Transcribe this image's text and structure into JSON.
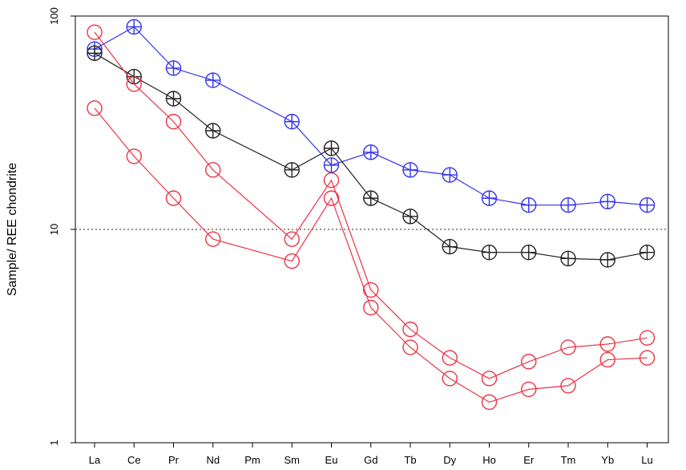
{
  "chart_data": {
    "type": "line",
    "xlabel": "",
    "ylabel": "Sample/ REE chondrite",
    "yscale": "log",
    "ylim": [
      1,
      100
    ],
    "yticks": [
      1,
      10,
      100
    ],
    "ytick_labels": [
      "1",
      "10",
      "100"
    ],
    "reference_line": {
      "y": 10,
      "style": "dotted",
      "color": "#555555"
    },
    "grid": false,
    "legend": "none",
    "categories": [
      "La",
      "Ce",
      "Pr",
      "Nd",
      "Pm",
      "Sm",
      "Eu",
      "Gd",
      "Tb",
      "Dy",
      "Ho",
      "Er",
      "Tm",
      "Yb",
      "Lu"
    ],
    "series": [
      {
        "color": "#3333ee",
        "marker": "circle-plus",
        "values": [
          70,
          89,
          57,
          50,
          null,
          32,
          20,
          23,
          19,
          18,
          14,
          13,
          13,
          13.5,
          13
        ]
      },
      {
        "color": "#222222",
        "marker": "circle-plus",
        "values": [
          67,
          52,
          41,
          29,
          null,
          19,
          24,
          14,
          11.5,
          8.3,
          7.8,
          7.8,
          7.3,
          7.2,
          7.8
        ]
      },
      {
        "color": "#ee3344",
        "marker": "circle",
        "values": [
          84,
          48,
          32,
          19,
          null,
          9,
          17,
          5.2,
          3.4,
          2.5,
          2.0,
          2.4,
          2.8,
          2.9,
          3.1
        ]
      },
      {
        "color": "#ee3344",
        "marker": "circle",
        "values": [
          37,
          22,
          14,
          9,
          null,
          7.1,
          14,
          4.3,
          2.8,
          2.0,
          1.55,
          1.78,
          1.85,
          2.45,
          2.5
        ]
      }
    ]
  }
}
